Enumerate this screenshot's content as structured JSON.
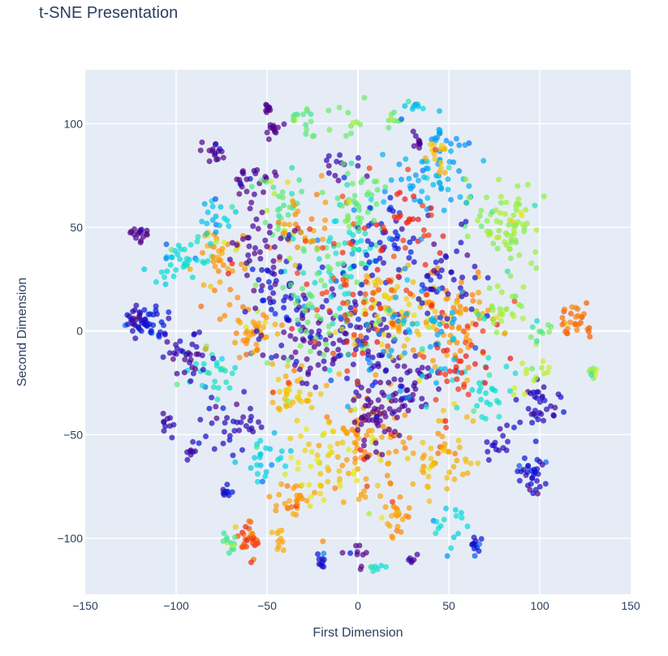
{
  "chart_data": {
    "type": "scatter",
    "title": "t-SNE Presentation",
    "xlabel": "First Dimension",
    "ylabel": "Second Dimension",
    "xlim": [
      -150,
      150
    ],
    "ylim": [
      -127,
      126
    ],
    "x_ticks": [
      -150,
      -100,
      -50,
      0,
      50,
      100,
      150
    ],
    "y_ticks": [
      -100,
      -50,
      0,
      50,
      100
    ],
    "x_tick_labels": [
      "−150",
      "−100",
      "−50",
      "0",
      "50",
      "100",
      "150"
    ],
    "y_tick_labels": [
      "−100",
      "−50",
      "0",
      "50",
      "100"
    ],
    "grid": true,
    "plot_bgcolor": "#e5ecf6",
    "marker_opacity": 0.7,
    "colorscale": "jet",
    "clusters": [
      {
        "x": -121,
        "y": 6,
        "r": 7,
        "n": 32,
        "c": 0.12
      },
      {
        "x": -113,
        "y": 5,
        "r": 10,
        "n": 22,
        "c": 0.16
      },
      {
        "x": -120,
        "y": 46,
        "r": 4,
        "n": 16,
        "c": 0.02
      },
      {
        "x": -103,
        "y": 31,
        "r": 9,
        "n": 20,
        "c": 0.42
      },
      {
        "x": -92,
        "y": 35,
        "r": 9,
        "n": 18,
        "c": 0.45
      },
      {
        "x": -79,
        "y": 86,
        "r": 5,
        "n": 16,
        "c": 0.03
      },
      {
        "x": -105,
        "y": -45,
        "r": 4,
        "n": 10,
        "c": 0.1
      },
      {
        "x": -92,
        "y": -58,
        "r": 3,
        "n": 8,
        "c": 0.08
      },
      {
        "x": -72,
        "y": -78,
        "r": 4,
        "n": 10,
        "c": 0.15
      },
      {
        "x": -60,
        "y": -100,
        "r": 7,
        "n": 30,
        "c": 0.92
      },
      {
        "x": -70,
        "y": -102,
        "r": 5,
        "n": 12,
        "c": 0.55
      },
      {
        "x": -44,
        "y": -100,
        "r": 6,
        "n": 10,
        "c": 0.82
      },
      {
        "x": -50,
        "y": 107,
        "r": 3,
        "n": 9,
        "c": 0.03
      },
      {
        "x": -46,
        "y": 98,
        "r": 5,
        "n": 12,
        "c": 0.04
      },
      {
        "x": -30,
        "y": 102,
        "r": 7,
        "n": 16,
        "c": 0.58
      },
      {
        "x": -10,
        "y": 79,
        "r": 10,
        "n": 14,
        "c": 0.08
      },
      {
        "x": -56,
        "y": 72,
        "r": 10,
        "n": 25,
        "c": 0.04
      },
      {
        "x": -40,
        "y": 62,
        "r": 14,
        "n": 30,
        "c": 0.58
      },
      {
        "x": -5,
        "y": 97,
        "r": 12,
        "n": 12,
        "c": 0.6
      },
      {
        "x": 31,
        "y": 108,
        "r": 4,
        "n": 8,
        "c": 0.4
      },
      {
        "x": 34,
        "y": 92,
        "r": 4,
        "n": 9,
        "c": 0.03
      },
      {
        "x": 18,
        "y": 100,
        "r": 4,
        "n": 8,
        "c": 0.6
      },
      {
        "x": 40,
        "y": 75,
        "r": 22,
        "n": 70,
        "c": 0.35
      },
      {
        "x": 45,
        "y": 85,
        "r": 8,
        "n": 15,
        "c": 0.8
      },
      {
        "x": 85,
        "y": 52,
        "r": 18,
        "n": 75,
        "c": 0.65
      },
      {
        "x": 120,
        "y": 5,
        "r": 9,
        "n": 30,
        "c": 0.9
      },
      {
        "x": 130,
        "y": -21,
        "r": 3,
        "n": 8,
        "c": 0.6
      },
      {
        "x": 98,
        "y": -35,
        "r": 11,
        "n": 35,
        "c": 0.12
      },
      {
        "x": 96,
        "y": -20,
        "r": 10,
        "n": 14,
        "c": 0.7
      },
      {
        "x": 95,
        "y": -70,
        "r": 8,
        "n": 32,
        "c": 0.14
      },
      {
        "x": 75,
        "y": -55,
        "r": 8,
        "n": 14,
        "c": 0.12
      },
      {
        "x": 65,
        "y": -103,
        "r": 5,
        "n": 12,
        "c": 0.14
      },
      {
        "x": 0,
        "y": -107,
        "r": 5,
        "n": 10,
        "c": 0.01
      },
      {
        "x": 10,
        "y": -115,
        "r": 3,
        "n": 7,
        "c": 0.45
      },
      {
        "x": -20,
        "y": -112,
        "r": 4,
        "n": 10,
        "c": 0.13
      },
      {
        "x": 30,
        "y": -110,
        "r": 3,
        "n": 6,
        "c": 0.05
      },
      {
        "x": -35,
        "y": -80,
        "r": 10,
        "n": 28,
        "c": 0.85
      },
      {
        "x": 20,
        "y": -90,
        "r": 10,
        "n": 22,
        "c": 0.85
      },
      {
        "x": 50,
        "y": -95,
        "r": 12,
        "n": 16,
        "c": 0.42
      },
      {
        "x": -15,
        "y": -65,
        "r": 18,
        "n": 45,
        "c": 0.78
      },
      {
        "x": 5,
        "y": -55,
        "r": 25,
        "n": 90,
        "c": 0.85
      },
      {
        "x": 45,
        "y": -60,
        "r": 18,
        "n": 50,
        "c": 0.82
      },
      {
        "x": 10,
        "y": -40,
        "r": 14,
        "n": 50,
        "c": 0.02
      },
      {
        "x": 30,
        "y": -30,
        "r": 14,
        "n": 40,
        "c": 0.06
      },
      {
        "x": -35,
        "y": -30,
        "r": 14,
        "n": 45,
        "c": 0.8
      },
      {
        "x": -70,
        "y": -45,
        "r": 15,
        "n": 35,
        "c": 0.12
      },
      {
        "x": -80,
        "y": -20,
        "r": 14,
        "n": 30,
        "c": 0.45
      },
      {
        "x": -95,
        "y": -10,
        "r": 12,
        "n": 35,
        "c": 0.1
      },
      {
        "x": -60,
        "y": 0,
        "r": 14,
        "n": 45,
        "c": 0.85
      },
      {
        "x": -30,
        "y": -5,
        "r": 18,
        "n": 45,
        "c": 0.04
      },
      {
        "x": 0,
        "y": -5,
        "r": 22,
        "n": 80,
        "c": 0.1
      },
      {
        "x": 20,
        "y": 10,
        "r": 20,
        "n": 80,
        "c": 0.8
      },
      {
        "x": 55,
        "y": 5,
        "r": 22,
        "n": 80,
        "c": 0.85
      },
      {
        "x": 70,
        "y": -30,
        "r": 15,
        "n": 30,
        "c": 0.45
      },
      {
        "x": 80,
        "y": 10,
        "r": 15,
        "n": 30,
        "c": 0.65
      },
      {
        "x": -10,
        "y": 40,
        "r": 25,
        "n": 60,
        "c": 0.45
      },
      {
        "x": 15,
        "y": 40,
        "r": 20,
        "n": 50,
        "c": 0.15
      },
      {
        "x": -40,
        "y": 20,
        "r": 20,
        "n": 55,
        "c": 0.15
      },
      {
        "x": -75,
        "y": 35,
        "r": 15,
        "n": 40,
        "c": 0.85
      },
      {
        "x": -30,
        "y": 50,
        "r": 14,
        "n": 35,
        "c": 0.85
      },
      {
        "x": 50,
        "y": 30,
        "r": 20,
        "n": 40,
        "c": 0.12
      },
      {
        "x": 0,
        "y": 65,
        "r": 15,
        "n": 35,
        "c": 0.6
      },
      {
        "x": 30,
        "y": 55,
        "r": 15,
        "n": 30,
        "c": 0.98
      },
      {
        "x": -80,
        "y": 55,
        "r": 10,
        "n": 20,
        "c": 0.4
      },
      {
        "x": -20,
        "y": 10,
        "r": 30,
        "n": 60,
        "c": 0.6
      },
      {
        "x": 30,
        "y": -5,
        "r": 30,
        "n": 60,
        "c": 0.35
      },
      {
        "x": 0,
        "y": 20,
        "r": 35,
        "n": 60,
        "c": 0.95
      },
      {
        "x": -50,
        "y": -60,
        "r": 12,
        "n": 25,
        "c": 0.4
      },
      {
        "x": 60,
        "y": -15,
        "r": 20,
        "n": 35,
        "c": 0.98
      },
      {
        "x": -55,
        "y": 40,
        "r": 15,
        "n": 30,
        "c": 0.03
      },
      {
        "x": 100,
        "y": 0,
        "r": 6,
        "n": 10,
        "c": 0.6
      }
    ]
  }
}
